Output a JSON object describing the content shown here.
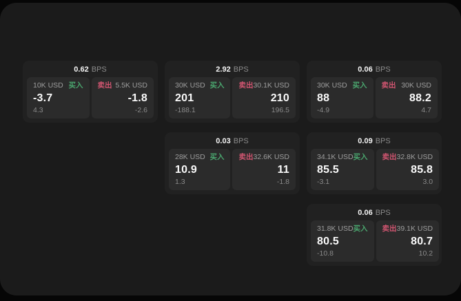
{
  "labels": {
    "bps": "BPS",
    "buy": "买入",
    "sell": "卖出"
  },
  "colors": {
    "buy": "#4aa56e",
    "sell": "#d05570",
    "panel": "#1b1b1b",
    "card": "#212121",
    "tile": "#2b2b2b"
  },
  "cards": [
    {
      "bps": "0.62",
      "buy": {
        "amount": "10K USD",
        "value": "-3.7",
        "delta": "4.3"
      },
      "sell": {
        "amount": "5.5K USD",
        "value": "-1.8",
        "delta": "-2.6"
      }
    },
    {
      "bps": "2.92",
      "buy": {
        "amount": "30K USD",
        "value": "201",
        "delta": "-188.1"
      },
      "sell": {
        "amount": "30.1K USD",
        "value": "210",
        "delta": "196.5"
      }
    },
    {
      "bps": "0.06",
      "buy": {
        "amount": "30K USD",
        "value": "88",
        "delta": "-4.9"
      },
      "sell": {
        "amount": "30K USD",
        "value": "88.2",
        "delta": "4.7"
      }
    },
    {
      "bps": "0.03",
      "buy": {
        "amount": "28K USD",
        "value": "10.9",
        "delta": "1.3"
      },
      "sell": {
        "amount": "32.6K USD",
        "value": "11",
        "delta": "-1.8"
      }
    },
    {
      "bps": "0.09",
      "buy": {
        "amount": "34.1K USD",
        "value": "85.5",
        "delta": "-3.1"
      },
      "sell": {
        "amount": "32.8K USD",
        "value": "85.8",
        "delta": "3.0"
      }
    },
    {
      "bps": "0.06",
      "buy": {
        "amount": "31.8K USD",
        "value": "80.5",
        "delta": "-10.8"
      },
      "sell": {
        "amount": "39.1K USD",
        "value": "80.7",
        "delta": "10.2"
      }
    }
  ]
}
